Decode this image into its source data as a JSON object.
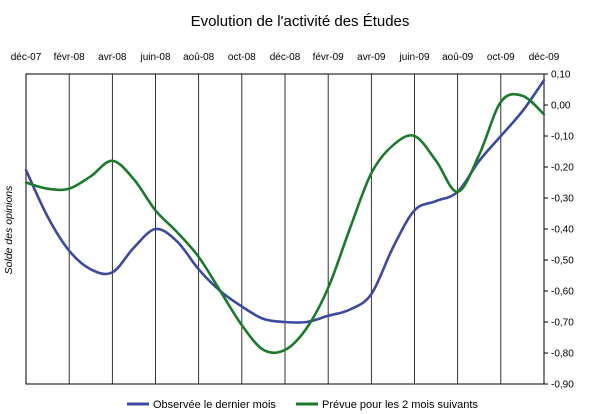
{
  "chart_data": {
    "type": "line",
    "title": "Evolution de l'activité des Études",
    "ylabel": "Solde des opinions",
    "xlabel": "",
    "x_tick_labels": [
      "déc-07",
      "févr-08",
      "avr-08",
      "juin-08",
      "aoû-08",
      "oct-08",
      "déc-08",
      "févr-09",
      "avr-09",
      "juin-09",
      "aoû-09",
      "oct-09",
      "déc-09"
    ],
    "y_tick_labels": [
      "0,10",
      "0,00",
      "-0,10",
      "-0,20",
      "-0,30",
      "-0,40",
      "-0,50",
      "-0,60",
      "-0,70",
      "-0,80",
      "-0,90"
    ],
    "ylim": [
      -0.9,
      0.1
    ],
    "grid": "vertical",
    "legend_position": "bottom",
    "series": [
      {
        "name": "Observée le dernier mois",
        "color": "#3b4aa0",
        "values": [
          -0.21,
          -0.36,
          -0.47,
          -0.53,
          -0.54,
          -0.46,
          -0.4,
          -0.44,
          -0.53,
          -0.6,
          -0.65,
          -0.69,
          -0.7,
          -0.7,
          -0.68,
          -0.66,
          -0.61,
          -0.46,
          -0.34,
          -0.31,
          -0.28,
          -0.18,
          -0.1,
          -0.02,
          0.08
        ]
      },
      {
        "name": "Prévue pour les 2 mois suivants",
        "color": "#1a7a2a",
        "values": [
          -0.25,
          -0.27,
          -0.27,
          -0.23,
          -0.18,
          -0.24,
          -0.34,
          -0.41,
          -0.49,
          -0.6,
          -0.71,
          -0.79,
          -0.79,
          -0.72,
          -0.59,
          -0.4,
          -0.22,
          -0.13,
          -0.1,
          -0.18,
          -0.28,
          -0.16,
          0.01,
          0.03,
          -0.03
        ]
      }
    ]
  }
}
